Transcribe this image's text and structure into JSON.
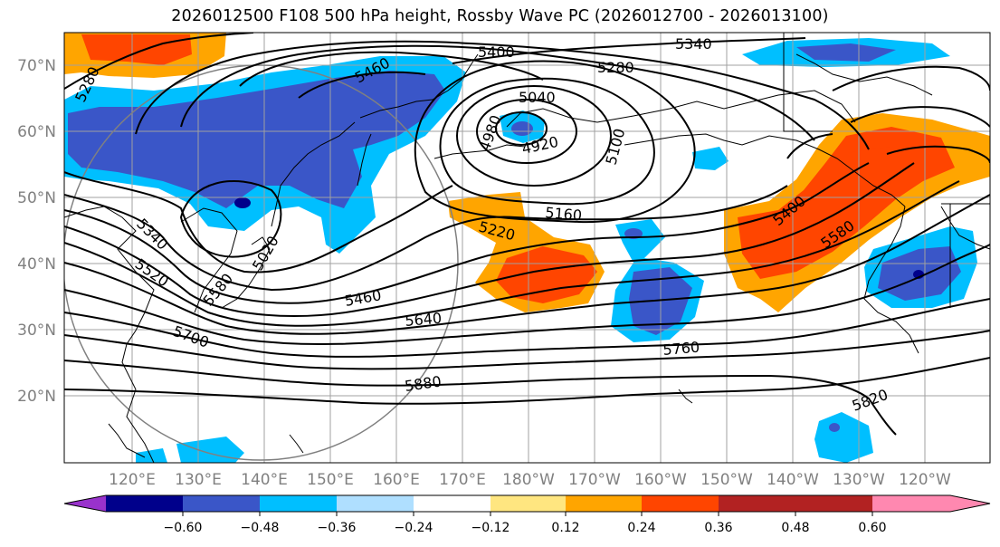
{
  "title": "2026012500 F108 500 hPa height, Rossby Wave PC (2026012700 - 2026013100)",
  "map": {
    "lat_labels": [
      "70°N",
      "60°N",
      "50°N",
      "40°N",
      "30°N",
      "20°N"
    ],
    "lon_labels": [
      "120°E",
      "130°E",
      "140°E",
      "150°E",
      "160°E",
      "170°E",
      "180°W",
      "170°W",
      "160°W",
      "150°W",
      "140°W",
      "130°W",
      "120°W"
    ],
    "contour_labels": [
      "5400",
      "5340",
      "5280",
      "5460",
      "5040",
      "4980",
      "4920",
      "5100",
      "5160",
      "5220",
      "5280",
      "5340",
      "5520",
      "5580",
      "5020",
      "5460",
      "5640",
      "5700",
      "5760",
      "5880",
      "5820",
      "5400",
      "5580"
    ]
  },
  "colorbar": {
    "ticks": [
      "−0.60",
      "−0.48",
      "−0.36",
      "−0.24",
      "−0.12",
      "0.12",
      "0.24",
      "0.36",
      "0.48",
      "0.60"
    ],
    "colors": [
      "#9932cc",
      "#00008b",
      "#3a56c8",
      "#00bfff",
      "#afdfff",
      "#ffffff",
      "#ffe680",
      "#ffa500",
      "#ff4500",
      "#b22222",
      "#ff88b0"
    ]
  }
}
